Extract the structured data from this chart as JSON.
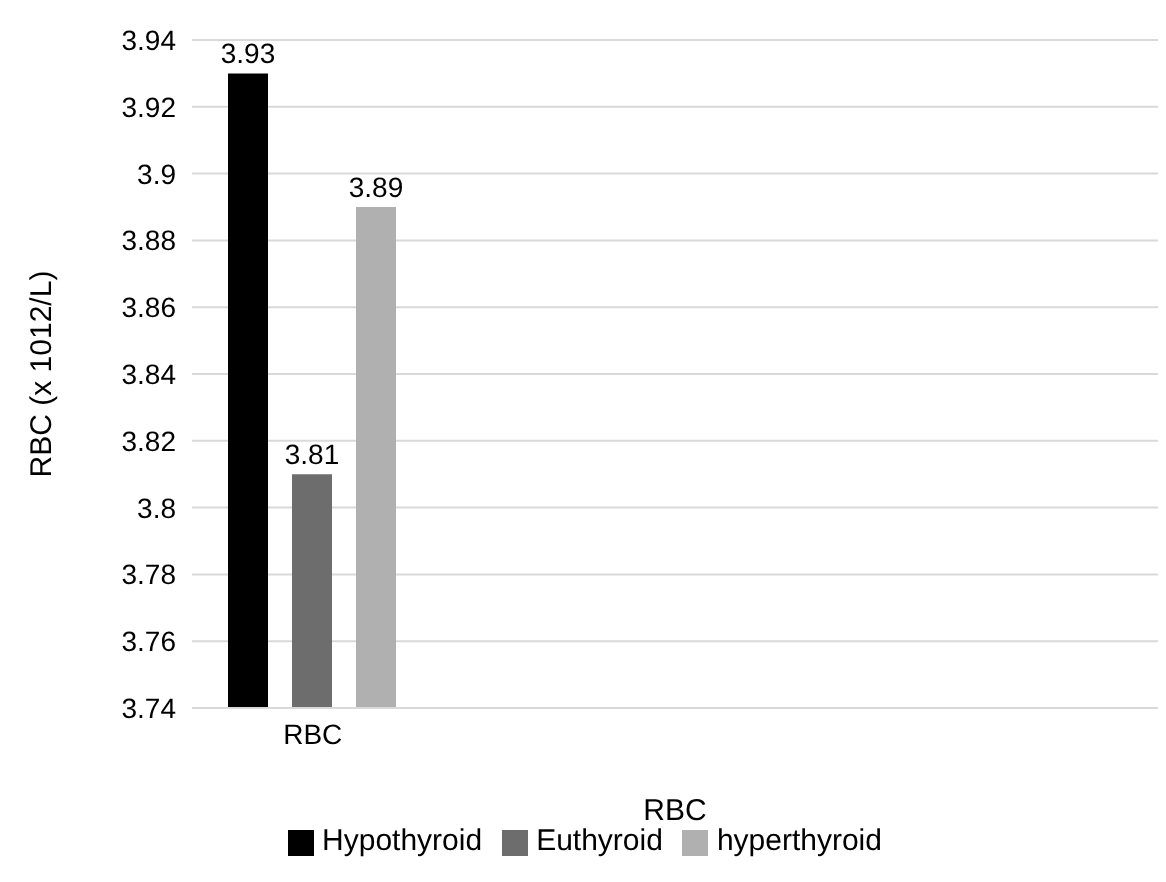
{
  "chart_data": {
    "type": "bar",
    "xlabel": "RBC",
    "ylabel": "RBC (x 1012/L)",
    "categories": [
      "RBC",
      null,
      null,
      null
    ],
    "series": [
      {
        "name": "Hypothyroid",
        "color": "#000000",
        "values": [
          3.93,
          null,
          null,
          null
        ]
      },
      {
        "name": "Euthyroid",
        "color": "#6d6d6d",
        "values": [
          3.81,
          null,
          null,
          null
        ]
      },
      {
        "name": "hyperthyroid",
        "color": "#b0b0b0",
        "values": [
          3.89,
          null,
          null,
          null
        ]
      }
    ],
    "ylim": [
      3.74,
      3.94
    ],
    "yticks": [
      3.74,
      3.76,
      3.78,
      3.8,
      3.82,
      3.84,
      3.86,
      3.88,
      3.9,
      3.92,
      3.94
    ],
    "grid": "y",
    "legend": "bottom",
    "data_labels": true
  }
}
